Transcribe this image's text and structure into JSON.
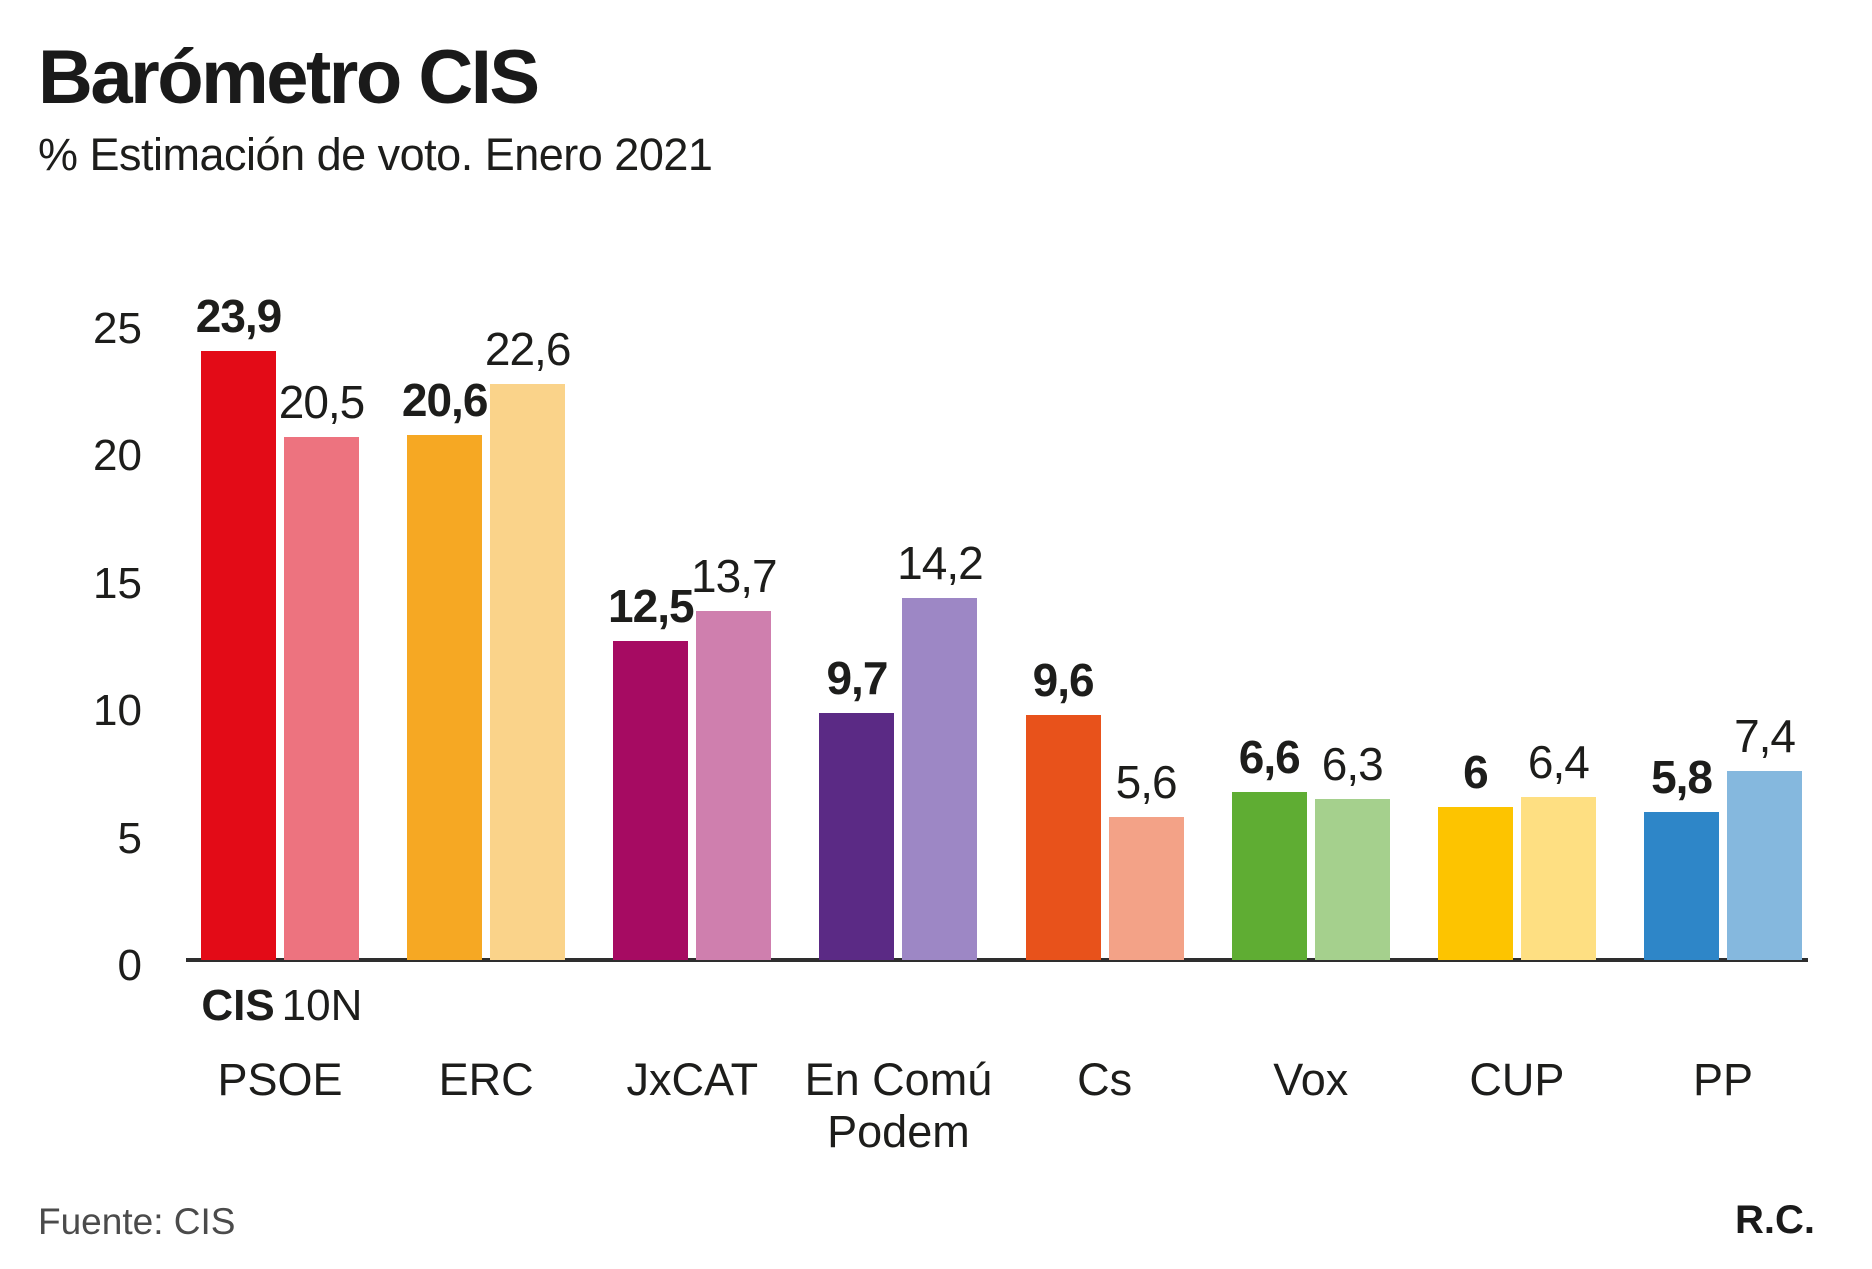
{
  "header": {
    "title": "Barómetro CIS",
    "subtitle": "% Estimación de voto. Enero 2021"
  },
  "legend": {
    "cis": "CIS",
    "n10": "10N"
  },
  "footer": {
    "source": "Fuente: CIS",
    "credit": "R.C."
  },
  "chart_data": {
    "type": "bar",
    "title": "Barómetro CIS",
    "subtitle": "% Estimación de voto. Enero 2021",
    "ylabel": "% estimación de voto",
    "ylim": [
      0,
      25
    ],
    "yticks": [
      0,
      5,
      10,
      15,
      20,
      25
    ],
    "grid": false,
    "legend_position": "below first group",
    "series_names": [
      "CIS",
      "10N"
    ],
    "categories": [
      "PSOE",
      "ERC",
      "JxCAT",
      "En Comú Podem",
      "Cs",
      "Vox",
      "CUP",
      "PP"
    ],
    "groups": [
      {
        "party": "PSOE",
        "lines": [
          "PSOE"
        ],
        "cis": {
          "value": 23.9,
          "label": "23,9",
          "color": "#e30b17"
        },
        "n10": {
          "value": 20.5,
          "label": "20,5",
          "color": "#ed737f"
        }
      },
      {
        "party": "ERC",
        "lines": [
          "ERC"
        ],
        "cis": {
          "value": 20.6,
          "label": "20,6",
          "color": "#f6a823"
        },
        "n10": {
          "value": 22.6,
          "label": "22,6",
          "color": "#fad38a"
        }
      },
      {
        "party": "JxCAT",
        "lines": [
          "JxCAT"
        ],
        "cis": {
          "value": 12.5,
          "label": "12,5",
          "color": "#a60b62"
        },
        "n10": {
          "value": 13.7,
          "label": "13,7",
          "color": "#cf7fae"
        }
      },
      {
        "party": "En Comú Podem",
        "lines": [
          "En Comú",
          "Podem"
        ],
        "cis": {
          "value": 9.7,
          "label": "9,7",
          "color": "#5b2a85"
        },
        "n10": {
          "value": 14.2,
          "label": "14,2",
          "color": "#9d87c5"
        }
      },
      {
        "party": "Cs",
        "lines": [
          "Cs"
        ],
        "cis": {
          "value": 9.6,
          "label": "9,6",
          "color": "#e8521b"
        },
        "n10": {
          "value": 5.6,
          "label": "5,6",
          "color": "#f3a287"
        }
      },
      {
        "party": "Vox",
        "lines": [
          "Vox"
        ],
        "cis": {
          "value": 6.6,
          "label": "6,6",
          "color": "#5fad33"
        },
        "n10": {
          "value": 6.3,
          "label": "6,3",
          "color": "#a5d08d"
        }
      },
      {
        "party": "CUP",
        "lines": [
          "CUP"
        ],
        "cis": {
          "value": 6,
          "label": "6",
          "color": "#fdc400"
        },
        "n10": {
          "value": 6.4,
          "label": "6,4",
          "color": "#fedf82"
        }
      },
      {
        "party": "PP",
        "lines": [
          "PP"
        ],
        "cis": {
          "value": 5.8,
          "label": "5,8",
          "color": "#2e86c8"
        },
        "n10": {
          "value": 7.4,
          "label": "7,4",
          "color": "#85b8de"
        }
      }
    ]
  }
}
